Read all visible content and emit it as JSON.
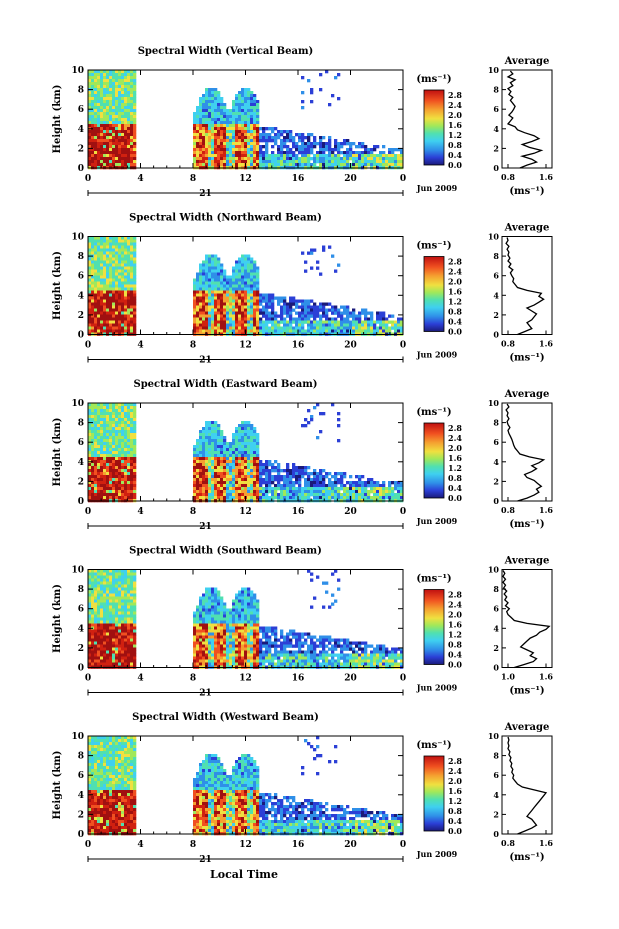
{
  "panels": [
    {
      "title": "Spectral Width (Vertical Beam)",
      "avg_xticks": [
        "0.8",
        "1.6"
      ],
      "avg_profile": [
        [
          0,
          1.05
        ],
        [
          0.3,
          1.2
        ],
        [
          0.6,
          1.4
        ],
        [
          0.9,
          1.3
        ],
        [
          1.2,
          1.1
        ],
        [
          1.5,
          1.35
        ],
        [
          1.8,
          1.5
        ],
        [
          2.1,
          1.25
        ],
        [
          2.4,
          1.1
        ],
        [
          2.7,
          1.3
        ],
        [
          3.0,
          1.45
        ],
        [
          3.3,
          1.35
        ],
        [
          3.6,
          1.15
        ],
        [
          3.9,
          1.0
        ],
        [
          4.2,
          0.95
        ],
        [
          4.5,
          0.8
        ],
        [
          4.8,
          0.85
        ],
        [
          5.1,
          0.9
        ],
        [
          5.4,
          0.82
        ],
        [
          5.7,
          0.88
        ],
        [
          6.0,
          0.92
        ],
        [
          6.3,
          0.95
        ],
        [
          6.6,
          0.9
        ],
        [
          6.9,
          0.85
        ],
        [
          7.2,
          0.9
        ],
        [
          7.5,
          0.82
        ],
        [
          7.8,
          0.86
        ],
        [
          8.1,
          0.8
        ],
        [
          8.4,
          0.9
        ],
        [
          8.7,
          0.85
        ],
        [
          9.0,
          0.95
        ],
        [
          9.3,
          0.8
        ],
        [
          9.6,
          0.9
        ],
        [
          9.9,
          0.85
        ]
      ]
    },
    {
      "title": "Spectral Width (Northward Beam)",
      "avg_xticks": [
        "0.8",
        "1.6"
      ],
      "avg_profile": [
        [
          0,
          1.0
        ],
        [
          0.3,
          1.15
        ],
        [
          0.6,
          1.3
        ],
        [
          0.9,
          1.25
        ],
        [
          1.2,
          1.2
        ],
        [
          1.5,
          1.3
        ],
        [
          1.8,
          1.35
        ],
        [
          2.1,
          1.4
        ],
        [
          2.4,
          1.3
        ],
        [
          2.7,
          1.2
        ],
        [
          3.0,
          1.35
        ],
        [
          3.3,
          1.45
        ],
        [
          3.6,
          1.55
        ],
        [
          3.9,
          1.45
        ],
        [
          4.2,
          1.5
        ],
        [
          4.5,
          1.2
        ],
        [
          4.8,
          1.0
        ],
        [
          5.1,
          0.95
        ],
        [
          5.4,
          0.9
        ],
        [
          5.7,
          0.92
        ],
        [
          6.0,
          0.88
        ],
        [
          6.3,
          0.85
        ],
        [
          6.6,
          0.9
        ],
        [
          6.9,
          0.82
        ],
        [
          7.2,
          0.86
        ],
        [
          7.5,
          0.8
        ],
        [
          7.8,
          0.84
        ],
        [
          8.1,
          0.8
        ],
        [
          8.4,
          0.82
        ],
        [
          8.7,
          0.78
        ],
        [
          9.0,
          0.82
        ],
        [
          9.3,
          0.76
        ],
        [
          9.6,
          0.8
        ],
        [
          9.9,
          0.78
        ]
      ]
    },
    {
      "title": "Spectral Width (Eastward Beam)",
      "avg_xticks": [
        "0.8",
        "1.6"
      ],
      "avg_profile": [
        [
          0,
          1.0
        ],
        [
          0.3,
          1.2
        ],
        [
          0.6,
          1.35
        ],
        [
          0.9,
          1.45
        ],
        [
          1.2,
          1.4
        ],
        [
          1.5,
          1.5
        ],
        [
          1.8,
          1.42
        ],
        [
          2.1,
          1.35
        ],
        [
          2.4,
          1.2
        ],
        [
          2.7,
          1.15
        ],
        [
          3.0,
          1.3
        ],
        [
          3.3,
          1.4
        ],
        [
          3.6,
          1.3
        ],
        [
          3.9,
          1.45
        ],
        [
          4.2,
          1.55
        ],
        [
          4.5,
          1.25
        ],
        [
          4.8,
          1.05
        ],
        [
          5.1,
          1.0
        ],
        [
          5.4,
          0.95
        ],
        [
          5.7,
          0.92
        ],
        [
          6.0,
          0.9
        ],
        [
          6.3,
          0.88
        ],
        [
          6.6,
          0.85
        ],
        [
          6.9,
          0.82
        ],
        [
          7.2,
          0.8
        ],
        [
          7.5,
          0.84
        ],
        [
          7.8,
          0.8
        ],
        [
          8.1,
          0.78
        ],
        [
          8.4,
          0.82
        ],
        [
          8.7,
          0.78
        ],
        [
          9.0,
          0.8
        ],
        [
          9.3,
          0.76
        ],
        [
          9.6,
          0.82
        ],
        [
          9.9,
          0.78
        ]
      ]
    },
    {
      "title": "Spectral Width (Southward Beam)",
      "avg_xticks": [
        "1.0",
        "1.6"
      ],
      "avg_profile": [
        [
          0,
          1.1
        ],
        [
          0.3,
          1.25
        ],
        [
          0.6,
          1.4
        ],
        [
          0.9,
          1.45
        ],
        [
          1.2,
          1.35
        ],
        [
          1.5,
          1.4
        ],
        [
          1.8,
          1.3
        ],
        [
          2.1,
          1.2
        ],
        [
          2.4,
          1.25
        ],
        [
          2.7,
          1.3
        ],
        [
          3.0,
          1.35
        ],
        [
          3.3,
          1.45
        ],
        [
          3.6,
          1.5
        ],
        [
          3.9,
          1.6
        ],
        [
          4.2,
          1.65
        ],
        [
          4.5,
          1.3
        ],
        [
          4.8,
          1.1
        ],
        [
          5.1,
          1.05
        ],
        [
          5.4,
          1.0
        ],
        [
          5.7,
          0.98
        ],
        [
          6.0,
          1.02
        ],
        [
          6.3,
          0.96
        ],
        [
          6.6,
          1.0
        ],
        [
          6.9,
          0.95
        ],
        [
          7.2,
          0.98
        ],
        [
          7.5,
          0.94
        ],
        [
          7.8,
          0.98
        ],
        [
          8.1,
          0.93
        ],
        [
          8.4,
          0.96
        ],
        [
          8.7,
          0.92
        ],
        [
          9.0,
          0.96
        ],
        [
          9.3,
          0.92
        ],
        [
          9.6,
          0.95
        ],
        [
          9.9,
          0.92
        ]
      ]
    },
    {
      "title": "Spectral Width (Westward Beam)",
      "avg_xticks": [
        "0.8",
        "1.6"
      ],
      "avg_profile": [
        [
          0,
          1.0
        ],
        [
          0.3,
          1.15
        ],
        [
          0.6,
          1.3
        ],
        [
          0.9,
          1.4
        ],
        [
          1.2,
          1.35
        ],
        [
          1.5,
          1.3
        ],
        [
          1.8,
          1.2
        ],
        [
          2.1,
          1.25
        ],
        [
          2.4,
          1.3
        ],
        [
          2.7,
          1.35
        ],
        [
          3.0,
          1.4
        ],
        [
          3.3,
          1.45
        ],
        [
          3.6,
          1.5
        ],
        [
          3.9,
          1.55
        ],
        [
          4.2,
          1.6
        ],
        [
          4.5,
          1.35
        ],
        [
          4.8,
          1.1
        ],
        [
          5.1,
          1.0
        ],
        [
          5.4,
          0.95
        ],
        [
          5.7,
          0.9
        ],
        [
          6.0,
          0.92
        ],
        [
          6.3,
          0.88
        ],
        [
          6.6,
          0.9
        ],
        [
          6.9,
          0.86
        ],
        [
          7.2,
          0.88
        ],
        [
          7.5,
          0.84
        ],
        [
          7.8,
          0.86
        ],
        [
          8.1,
          0.82
        ],
        [
          8.4,
          0.84
        ],
        [
          8.7,
          0.8
        ],
        [
          9.0,
          0.82
        ],
        [
          9.3,
          0.8
        ],
        [
          9.6,
          0.82
        ],
        [
          9.9,
          0.8
        ]
      ]
    }
  ],
  "labels": {
    "ylabel": "Height (km)",
    "units": "(ms⁻¹)",
    "avg_title": "Average",
    "avg_xlabel": "(ms⁻¹)",
    "day": "21",
    "month": "Jun 2009",
    "xlabel": "Local Time"
  },
  "chart_data": {
    "type": "heatmap",
    "xticks": [
      "0",
      "4",
      "8",
      "12",
      "16",
      "20",
      "0"
    ],
    "yticks": [
      "0",
      "2",
      "4",
      "6",
      "8",
      "10"
    ],
    "xlim": [
      0,
      24
    ],
    "ylim": [
      0,
      10
    ],
    "colorbar_ticks": [
      "0.0",
      "0.4",
      "0.8",
      "1.2",
      "1.6",
      "2.0",
      "2.4",
      "2.8"
    ],
    "colorbar_range": [
      0.0,
      3.0
    ],
    "data_coverage_hours": [
      [
        0,
        3.5
      ],
      [
        8,
        24
      ]
    ]
  },
  "colors": {
    "scale": [
      "#1a1a7a",
      "#2b3fd6",
      "#2f8fe8",
      "#3fd0f0",
      "#50e0b0",
      "#a0e85a",
      "#f0e040",
      "#f5a030",
      "#f05020",
      "#d02010",
      "#a01010"
    ],
    "axis": "#000000"
  }
}
